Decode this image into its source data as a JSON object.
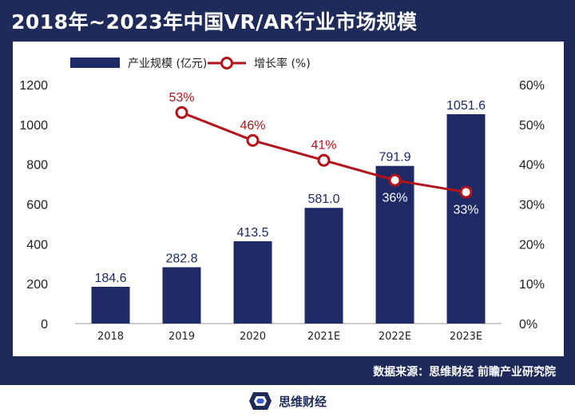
{
  "header": {
    "title": "2018年~2023年中国VR/AR行业市场规模"
  },
  "source": "数据来源：思维财经  前瞻产业研究院",
  "footer": {
    "logo_text": "思维财经"
  },
  "colors": {
    "navy": "#1d2a5a",
    "bar": "#1e2a66",
    "line": "#b5121b",
    "white": "#ffffff"
  },
  "chart_data": {
    "type": "bar",
    "categories": [
      "2018",
      "2019",
      "2020",
      "2021E",
      "2022E",
      "2023E"
    ],
    "series": [
      {
        "name": "产业规模 (亿元)",
        "type": "bar",
        "axis": "left",
        "values": [
          184.6,
          282.8,
          413.5,
          581.0,
          791.9,
          1051.6
        ],
        "labels": [
          "184.6",
          "282.8",
          "413.5",
          "581.0",
          "791.9",
          "1051.6"
        ]
      },
      {
        "name": "增长率 (%)",
        "type": "line",
        "axis": "right",
        "values": [
          null,
          53,
          46,
          41,
          36,
          33
        ],
        "labels": [
          "",
          "53%",
          "46%",
          "41%",
          "36%",
          "33%"
        ]
      }
    ],
    "y_left": {
      "min": 0,
      "max": 1200,
      "ticks": [
        "0",
        "200",
        "400",
        "600",
        "800",
        "1000",
        "1200"
      ]
    },
    "y_right": {
      "min": 0,
      "max": 60,
      "ticks": [
        "0%",
        "10%",
        "20%",
        "30%",
        "40%",
        "50%",
        "60%"
      ]
    },
    "legend": "top-left",
    "grid": false
  }
}
